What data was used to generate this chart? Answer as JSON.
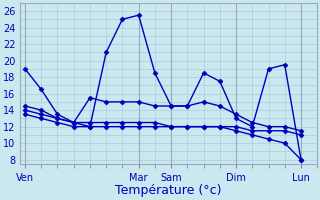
{
  "background_color": "#cbe8f0",
  "grid_color": "#aaccdd",
  "line_color": "#0000bb",
  "marker": "D",
  "markersize": 2.5,
  "linewidth": 1.0,
  "ylim": [
    7.5,
    27
  ],
  "yticks": [
    8,
    10,
    12,
    14,
    16,
    18,
    20,
    22,
    24,
    26
  ],
  "xlabel": "Température (°c)",
  "xlabel_fontsize": 9,
  "tick_fontsize": 7,
  "x_tick_labels": [
    "Ven",
    "Mar",
    "Sam",
    "Dim",
    "Lun"
  ],
  "x_tick_positions": [
    0,
    7,
    9,
    13,
    17
  ],
  "xlim": [
    -0.3,
    18
  ],
  "series1_x": [
    0,
    1,
    2,
    3,
    4,
    5,
    6,
    7,
    8,
    9,
    10,
    11,
    12,
    13,
    14,
    15,
    16,
    17
  ],
  "series1_y": [
    19.0,
    16.5,
    13.5,
    12.5,
    12.0,
    21.0,
    25.0,
    25.5,
    18.5,
    14.5,
    14.5,
    18.5,
    17.5,
    13.0,
    12.0,
    19.0,
    19.5,
    8.0
  ],
  "series2_x": [
    0,
    1,
    2,
    3,
    4,
    5,
    6,
    7,
    8,
    9,
    10,
    11,
    12,
    13,
    14,
    15,
    16,
    17
  ],
  "series2_y": [
    14.5,
    14.0,
    13.0,
    12.5,
    15.5,
    15.0,
    15.0,
    15.0,
    14.5,
    14.5,
    14.5,
    15.0,
    14.5,
    13.5,
    12.5,
    12.0,
    12.0,
    11.5
  ],
  "series3_x": [
    0,
    1,
    2,
    3,
    4,
    5,
    6,
    7,
    8,
    9,
    10,
    11,
    12,
    13,
    14,
    15,
    16,
    17
  ],
  "series3_y": [
    13.5,
    13.0,
    12.5,
    12.0,
    12.0,
    12.0,
    12.0,
    12.0,
    12.0,
    12.0,
    12.0,
    12.0,
    12.0,
    12.0,
    11.5,
    11.5,
    11.5,
    11.0
  ],
  "series4_x": [
    0,
    1,
    2,
    3,
    4,
    5,
    6,
    7,
    8,
    9,
    10,
    11,
    12,
    13,
    14,
    15,
    16,
    17
  ],
  "series4_y": [
    14.0,
    13.5,
    13.0,
    12.5,
    12.5,
    12.5,
    12.5,
    12.5,
    12.5,
    12.0,
    12.0,
    12.0,
    12.0,
    11.5,
    11.0,
    10.5,
    10.0,
    8.0
  ]
}
